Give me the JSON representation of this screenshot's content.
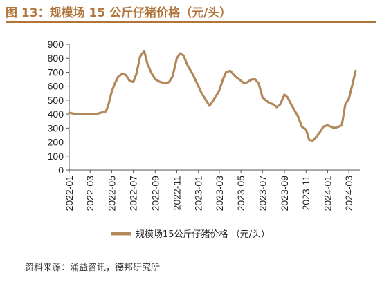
{
  "figure": {
    "title": "图 13：规模场 15 公斤仔猪价格（元/头）",
    "source": "资料来源：涌益咨讯，德邦研究所"
  },
  "chart_data": {
    "type": "line",
    "title": "",
    "xlabel": "",
    "ylabel": "",
    "ylim": [
      0,
      900
    ],
    "yticks": [
      0,
      100,
      200,
      300,
      400,
      500,
      600,
      700,
      800,
      900
    ],
    "x_ticks": [
      "2022-01",
      "2022-03",
      "2022-05",
      "2022-07",
      "2022-09",
      "2022-11",
      "2023-01",
      "2023-03",
      "2023-05",
      "2023-07",
      "2023-09",
      "2023-11",
      "2024-01",
      "2024-03"
    ],
    "grid": false,
    "legend": "bottom",
    "color": "#B1885A",
    "series": [
      {
        "name": "规模场15公斤仔猪价格 （元/头）",
        "x": [
          "2022-01-01",
          "2022-01-20",
          "2022-02-10",
          "2022-03-01",
          "2022-03-20",
          "2022-04-01",
          "2022-04-15",
          "2022-04-22",
          "2022-05-01",
          "2022-05-10",
          "2022-05-20",
          "2022-06-01",
          "2022-06-10",
          "2022-06-20",
          "2022-07-01",
          "2022-07-10",
          "2022-07-15",
          "2022-07-20",
          "2022-07-25",
          "2022-08-01",
          "2022-08-10",
          "2022-08-20",
          "2022-09-01",
          "2022-09-15",
          "2022-10-01",
          "2022-10-10",
          "2022-10-20",
          "2022-11-01",
          "2022-11-10",
          "2022-11-20",
          "2022-12-01",
          "2022-12-15",
          "2023-01-01",
          "2023-01-10",
          "2023-01-20",
          "2023-02-01",
          "2023-02-10",
          "2023-02-20",
          "2023-03-01",
          "2023-03-10",
          "2023-03-20",
          "2023-04-01",
          "2023-04-15",
          "2023-05-01",
          "2023-05-10",
          "2023-05-20",
          "2023-06-01",
          "2023-06-10",
          "2023-06-20",
          "2023-07-01",
          "2023-07-10",
          "2023-07-20",
          "2023-08-01",
          "2023-08-10",
          "2023-08-20",
          "2023-09-01",
          "2023-09-10",
          "2023-09-20",
          "2023-10-01",
          "2023-10-10",
          "2023-10-20",
          "2023-11-01",
          "2023-11-10",
          "2023-11-20",
          "2023-12-01",
          "2023-12-10",
          "2023-12-20",
          "2024-01-01",
          "2024-01-10",
          "2024-01-20",
          "2024-02-01",
          "2024-02-10",
          "2024-02-20",
          "2024-03-01",
          "2024-03-10",
          "2024-03-20"
        ],
        "values": [
          410,
          400,
          400,
          400,
          402,
          410,
          420,
          470,
          560,
          620,
          670,
          690,
          680,
          640,
          630,
          690,
          750,
          810,
          830,
          850,
          760,
          700,
          650,
          630,
          620,
          630,
          670,
          800,
          835,
          820,
          750,
          690,
          600,
          550,
          510,
          460,
          490,
          530,
          570,
          640,
          700,
          710,
          670,
          640,
          620,
          630,
          650,
          650,
          620,
          520,
          500,
          480,
          470,
          450,
          470,
          540,
          520,
          470,
          420,
          380,
          310,
          290,
          215,
          210,
          240,
          270,
          310,
          320,
          310,
          300,
          310,
          320,
          470,
          510,
          600,
          710
        ]
      }
    ]
  }
}
